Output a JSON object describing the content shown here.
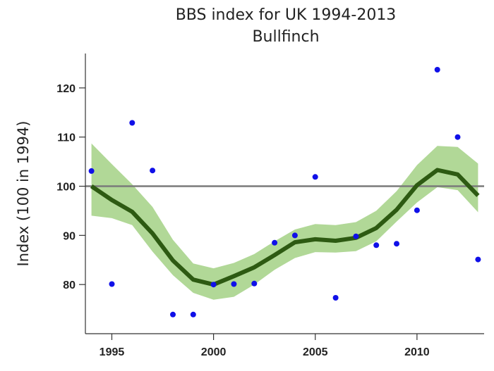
{
  "chart_data": {
    "type": "line",
    "title": "BBS index for UK 1994-2013",
    "subtitle": "Bullfinch",
    "xlabel": "",
    "ylabel": "Index (100 in 1994)",
    "xlim": [
      1993.7,
      2013.3
    ],
    "ylim": [
      70,
      127
    ],
    "x_ticks": [
      1995,
      2000,
      2005,
      2010
    ],
    "x_tick_labels": [
      "1995",
      "2000",
      "2005",
      "2010"
    ],
    "y_ticks": [
      80,
      90,
      100,
      110,
      120
    ],
    "y_tick_labels": [
      "80",
      "90",
      "100",
      "110",
      "120"
    ],
    "reference_line": 100,
    "grid": false,
    "legend": "none",
    "series": [
      {
        "kind": "trend",
        "x": [
          1994,
          1995,
          1996,
          1997,
          1998,
          1999,
          2000,
          2001,
          2002,
          2003,
          2004,
          2005,
          2006,
          2007,
          2008,
          2009,
          2010,
          2011,
          2012,
          2013
        ],
        "values": [
          100,
          97.2,
          94.8,
          90.4,
          84.9,
          81.0,
          80.0,
          81.7,
          83.5,
          86.0,
          88.6,
          89.2,
          88.9,
          89.5,
          91.5,
          95.2,
          100.2,
          103.3,
          102.4,
          98.1
        ]
      },
      {
        "kind": "confidence_interval",
        "x": [
          1994,
          1995,
          1996,
          1997,
          1998,
          1999,
          2000,
          2001,
          2002,
          2003,
          2004,
          2005,
          2006,
          2007,
          2008,
          2009,
          2010,
          2011,
          2012,
          2013
        ],
        "upper": [
          108.7,
          104.5,
          100.4,
          95.8,
          89.1,
          84.3,
          83.3,
          84.4,
          86.2,
          88.8,
          91.2,
          92.3,
          92.1,
          92.7,
          95.0,
          99.0,
          104.3,
          108.2,
          108.0,
          104.6
        ],
        "lower": [
          94.0,
          93.5,
          92.1,
          86.7,
          81.9,
          78.3,
          76.9,
          77.5,
          80.0,
          83.0,
          85.4,
          86.6,
          86.5,
          86.8,
          88.8,
          92.8,
          96.7,
          99.8,
          99.2,
          94.7
        ]
      },
      {
        "kind": "annual_points",
        "x": [
          1994,
          1995,
          1996,
          1997,
          1998,
          1999,
          2000,
          2001,
          2002,
          2003,
          2004,
          2005,
          2006,
          2007,
          2008,
          2009,
          2010,
          2011,
          2012,
          2013
        ],
        "values": [
          103.1,
          80.1,
          112.9,
          103.2,
          73.9,
          73.9,
          80.0,
          80.1,
          80.2,
          88.5,
          90.0,
          101.9,
          77.3,
          89.8,
          88.0,
          88.3,
          95.1,
          123.7,
          110.0,
          85.1
        ]
      }
    ],
    "colors": {
      "trend": "#2d5a12",
      "ci_band": "#a8d48c",
      "points": "#1010e8",
      "reference": "#7a7a7a",
      "axis": "#333333"
    }
  }
}
